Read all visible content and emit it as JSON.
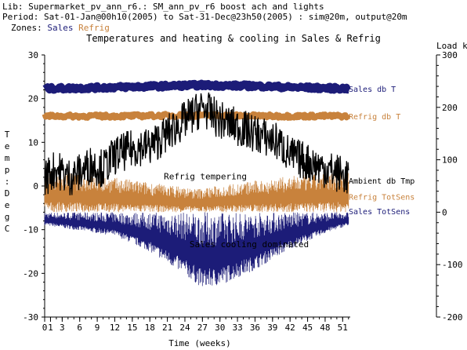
{
  "header": {
    "lib_line": "Lib: Supermarket_pv_ann_r6.: SM_ann_pv_r6 boost ach and lights",
    "period_line": "Period: Sat-01-Jan@00h10(2005) to Sat-31-Dec@23h50(2005) : sim@20m, output@20m",
    "zones_label": "Zones:",
    "zone_sales": "Sales",
    "zone_refrig": "Refrig"
  },
  "chart_data": {
    "type": "line",
    "title": "Temperatures and heating & cooling in Sales & Refrig",
    "xlabel": "Time (weeks)",
    "ylabel_left": "Temp: DegC",
    "ylabel_right": "Load kW",
    "xlim": [
      0,
      52.3
    ],
    "ylim_left": [
      -30,
      30
    ],
    "ylim_right": [
      -200,
      300
    ],
    "x_ticks": [
      "0",
      "1",
      "3",
      "6",
      "9",
      "12",
      "15",
      "18",
      "21",
      "24",
      "27",
      "30",
      "33",
      "36",
      "39",
      "42",
      "45",
      "48",
      "51"
    ],
    "y_ticks_left": [
      "30",
      "20",
      "10",
      "0",
      "-10",
      "-20",
      "-30"
    ],
    "y_ticks_right": [
      "300",
      "200",
      "100",
      "0",
      "-100",
      "-200"
    ],
    "grid": false,
    "series": [
      {
        "name": "Sales db T",
        "axis": "left",
        "color": "#1c1c78",
        "x": [
          0,
          6,
          12,
          18,
          24,
          27,
          30,
          36,
          42,
          48,
          52
        ],
        "values": [
          22.3,
          22.4,
          22.6,
          22.8,
          23.0,
          23.1,
          23.0,
          22.9,
          22.6,
          22.4,
          22.3
        ]
      },
      {
        "name": "Refrig db T",
        "axis": "left",
        "color": "#c8823c",
        "x": [
          0,
          12,
          26,
          39,
          52
        ],
        "values": [
          16.0,
          16.0,
          16.2,
          16.0,
          16.0
        ]
      },
      {
        "name": "Ambient db Tmp",
        "axis": "left",
        "color": "#000000",
        "x": [
          0,
          2,
          4,
          6,
          8,
          10,
          12,
          14,
          16,
          18,
          20,
          22,
          24,
          26,
          27,
          28,
          30,
          32,
          34,
          36,
          38,
          40,
          42,
          44,
          46,
          48,
          50,
          52
        ],
        "values": [
          2,
          4,
          2,
          3,
          5,
          4,
          7,
          8,
          9,
          9,
          11,
          13,
          15,
          17,
          18,
          17,
          15,
          14,
          13,
          12,
          11,
          10,
          7,
          6,
          5,
          4,
          3,
          2
        ]
      },
      {
        "name": "Refrig TotSens",
        "axis": "right",
        "color": "#c8823c",
        "x": [
          0,
          13,
          26,
          39,
          52
        ],
        "values_min": [
          0,
          0,
          0,
          0,
          0
        ],
        "values_max": [
          80,
          65,
          45,
          65,
          80
        ]
      },
      {
        "name": "Sales TotSens",
        "axis": "right",
        "color": "#1c1c78",
        "x": [
          0,
          6,
          12,
          18,
          24,
          27,
          30,
          36,
          42,
          48,
          52
        ],
        "values_min": [
          -25,
          -35,
          -45,
          -75,
          -120,
          -145,
          -140,
          -110,
          -70,
          -40,
          -25
        ],
        "values_max": [
          0,
          0,
          0,
          0,
          0,
          0,
          0,
          0,
          0,
          0,
          0
        ]
      }
    ],
    "annotations": [
      {
        "text": "Refrig tempering",
        "x": 27.5,
        "y": 1.5
      },
      {
        "text": "Sales cooling dominated",
        "x": 35,
        "y": -14
      }
    ]
  }
}
